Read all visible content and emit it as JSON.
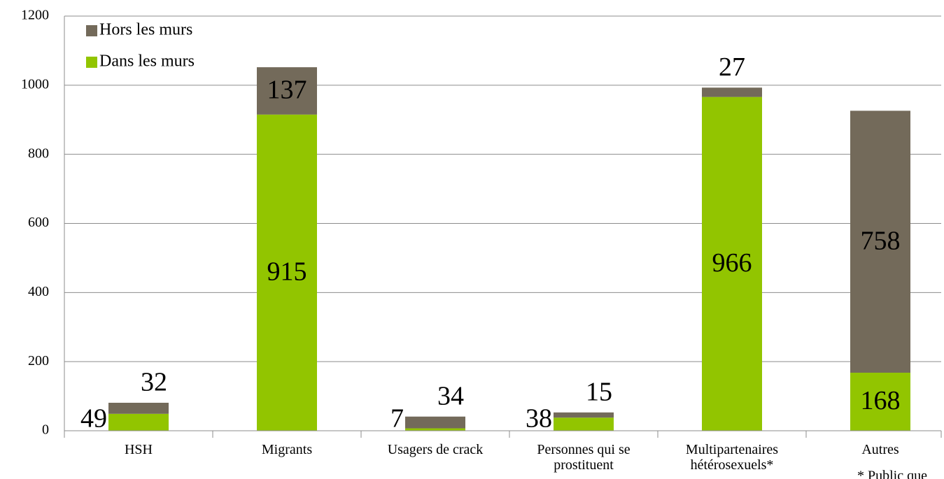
{
  "chart_data": {
    "type": "stacked_bar",
    "categories": [
      "HSH",
      "Migrants",
      "Usagers de crack",
      "Personnes qui se prostituent",
      "Multipartenaires hétérosexuels*",
      "Autres"
    ],
    "series": [
      {
        "name": "Dans les murs",
        "color": "#92c500",
        "values": [
          49,
          915,
          7,
          38,
          966,
          168
        ]
      },
      {
        "name": "Hors les murs",
        "color": "#736a5a",
        "values": [
          32,
          137,
          34,
          15,
          27,
          758
        ]
      }
    ],
    "ylim": [
      0,
      1200
    ],
    "yticks": [
      0,
      200,
      400,
      600,
      800,
      1000,
      1200
    ],
    "grid": true,
    "legend": "top-left",
    "note": "* Public que"
  }
}
